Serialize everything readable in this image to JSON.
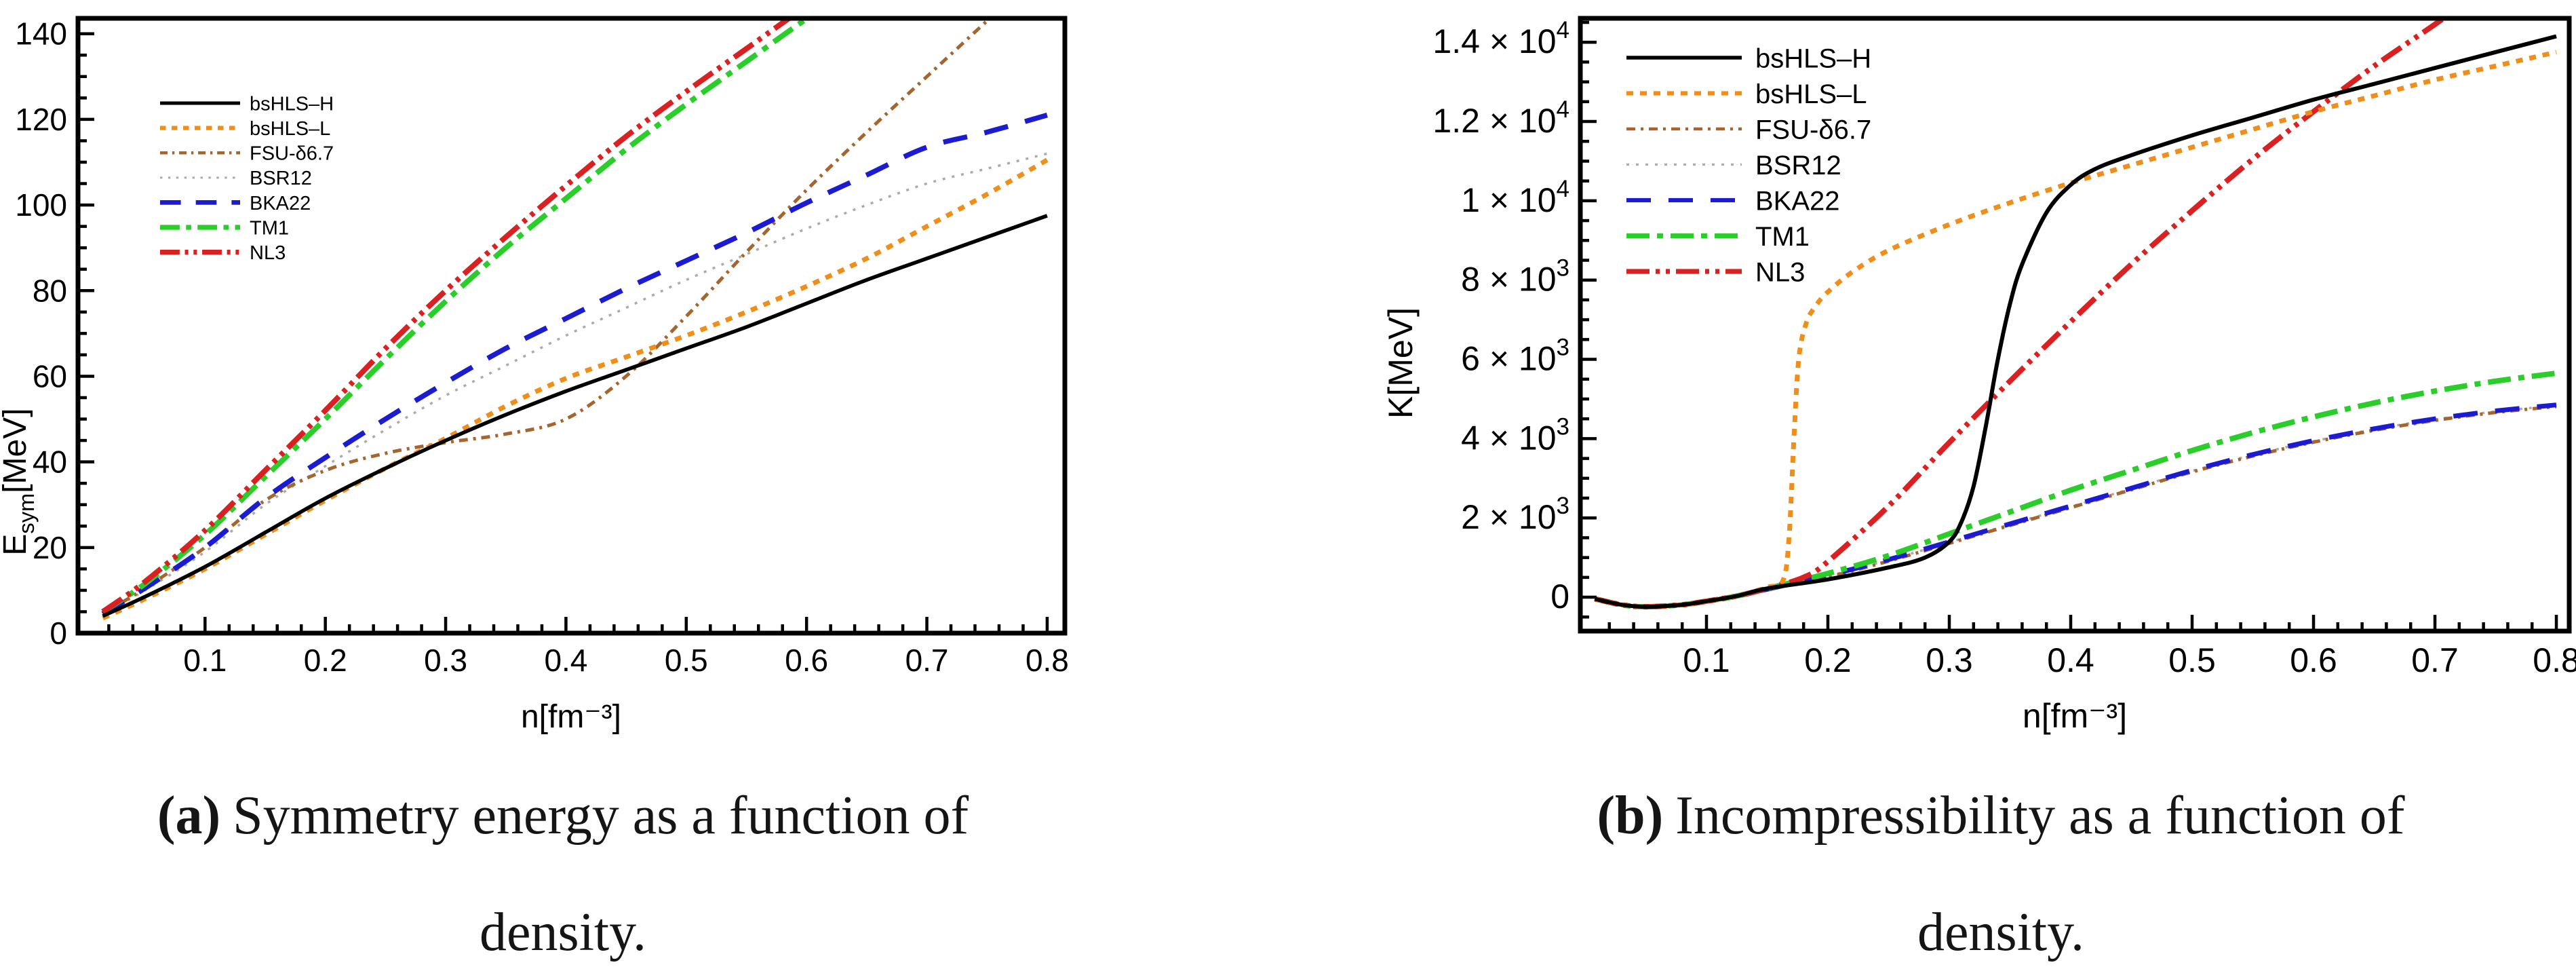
{
  "figure": {
    "captions": {
      "a": {
        "label": "(a)",
        "line1_rest": "Symmetry energy as a function of",
        "line2": "density."
      },
      "b": {
        "label": "(b)",
        "line1_rest": "Incompressibility as a function of",
        "line2": "density."
      }
    }
  },
  "chart_data": [
    {
      "id": "a",
      "type": "line",
      "title": "",
      "xlabel": "n[fm⁻³]",
      "ylabel_parts": [
        {
          "t": "E"
        },
        {
          "t": "sym",
          "sub": true
        },
        {
          "t": "[MeV]"
        }
      ],
      "xlim": [
        -0.0056,
        0.8147
      ],
      "ylim": [
        0,
        143.6
      ],
      "grid": false,
      "legend_position": "upper-left-inside",
      "x_major_ticks": [
        {
          "v": 0.1,
          "m": "0.1"
        },
        {
          "v": 0.2,
          "m": "0.2"
        },
        {
          "v": 0.3,
          "m": "0.3"
        },
        {
          "v": 0.4,
          "m": "0.4"
        },
        {
          "v": 0.5,
          "m": "0.5"
        },
        {
          "v": 0.6,
          "m": "0.6"
        },
        {
          "v": 0.7,
          "m": "0.7"
        },
        {
          "v": 0.8,
          "m": "0.8"
        }
      ],
      "x_minor_step": 0.02,
      "x_minor_start": 0.02,
      "y_major_ticks": [
        {
          "v": 0,
          "m": "0"
        },
        {
          "v": 20,
          "m": "20"
        },
        {
          "v": 40,
          "m": "40"
        },
        {
          "v": 60,
          "m": "60"
        },
        {
          "v": 80,
          "m": "80"
        },
        {
          "v": 100,
          "m": "100"
        },
        {
          "v": 120,
          "m": "120"
        },
        {
          "v": 140,
          "m": "140"
        }
      ],
      "y_minor_step": 5,
      "y_minor_start": 5,
      "x": [
        0.015,
        0.05,
        0.1,
        0.15,
        0.2,
        0.25,
        0.3,
        0.35,
        0.4,
        0.45,
        0.5,
        0.55,
        0.6,
        0.65,
        0.7,
        0.75,
        0.8
      ],
      "series": [
        {
          "name": "bsHLS-H",
          "label": "bsHLS–H",
          "color": "#000000",
          "width": 5.5,
          "dash": "",
          "z": 7,
          "y": [
            4,
            8.5,
            15.5,
            23.5,
            31.5,
            38.5,
            45,
            51,
            56.5,
            61.5,
            66.5,
            71.5,
            77,
            82.5,
            87.5,
            92.5,
            97.5
          ]
        },
        {
          "name": "bsHLS-L",
          "label": "bsHLS–L",
          "color": "#EF8E1A",
          "width": 7,
          "dash": "10 10",
          "z": 6,
          "y": [
            3.5,
            8,
            15,
            23,
            31,
            38.5,
            45.5,
            53,
            59.5,
            64.5,
            69.5,
            75,
            81,
            87.5,
            95,
            102.5,
            110.5
          ]
        },
        {
          "name": "FSU-d6.7",
          "label": "FSU-δ6.7",
          "color": "#A4662E",
          "width": 5,
          "dash": "13 8 4 8",
          "z": 2,
          "y": [
            4.5,
            10.5,
            20,
            31,
            38,
            42,
            44.5,
            46.5,
            50,
            60,
            74,
            89,
            103.5,
            117,
            130,
            143,
            156
          ]
        },
        {
          "name": "BSR12",
          "label": "BSR12",
          "color": "#ABABAB",
          "width": 3.5,
          "dash": "4 10",
          "z": 1,
          "y": [
            4.5,
            10,
            19,
            30,
            39,
            47.5,
            55.5,
            62.5,
            69.5,
            76,
            82.5,
            88.5,
            94.5,
            100,
            105,
            108.5,
            112
          ]
        },
        {
          "name": "BKA22",
          "label": "BKA22",
          "color": "#1B1BD2",
          "width": 7.5,
          "dash": "36 26",
          "z": 3,
          "y": [
            4.5,
            10.5,
            20,
            31.5,
            41,
            50,
            58.5,
            66.5,
            73.5,
            80.5,
            87,
            93.5,
            100.5,
            107,
            113.5,
            117,
            121
          ]
        },
        {
          "name": "TM1",
          "label": "TM1",
          "color": "#2BCD2B",
          "width": 8,
          "dash": "34 11 9 11",
          "z": 4,
          "y": [
            5,
            11.5,
            23,
            36.5,
            50,
            64,
            77.5,
            90,
            101.5,
            113,
            123.5,
            133.5,
            143.5,
            153,
            162,
            171,
            180
          ]
        },
        {
          "name": "NL3",
          "label": "NL3",
          "color": "#D92121",
          "width": 8,
          "dash": "34 9 6 9 6 9",
          "z": 5,
          "y": [
            5,
            12,
            24,
            38,
            52,
            66.5,
            80,
            92.5,
            104.5,
            116,
            126.5,
            136.5,
            146.5,
            156,
            165,
            174,
            183
          ]
        }
      ]
    },
    {
      "id": "b",
      "type": "line",
      "title": "",
      "xlabel": "n[fm⁻³]",
      "ylabel_parts": [
        {
          "t": "K[MeV]"
        }
      ],
      "xlim": [
        -0.0039,
        0.8106
      ],
      "ylim": [
        -855,
        14603
      ],
      "grid": false,
      "legend_position": "upper-left-inside",
      "x_major_ticks": [
        {
          "v": 0.1,
          "m": "0.1"
        },
        {
          "v": 0.2,
          "m": "0.2"
        },
        {
          "v": 0.3,
          "m": "0.3"
        },
        {
          "v": 0.4,
          "m": "0.4"
        },
        {
          "v": 0.5,
          "m": "0.5"
        },
        {
          "v": 0.6,
          "m": "0.6"
        },
        {
          "v": 0.7,
          "m": "0.7"
        },
        {
          "v": 0.8,
          "m": "0.8"
        }
      ],
      "x_minor_step": 0.02,
      "x_minor_start": 0.02,
      "y_major_ticks": [
        {
          "v": 0,
          "m": "0"
        },
        {
          "v": 2000,
          "m": "2 × 10",
          "e": "3"
        },
        {
          "v": 4000,
          "m": "4 × 10",
          "e": "3"
        },
        {
          "v": 6000,
          "m": "6 × 10",
          "e": "3"
        },
        {
          "v": 8000,
          "m": "8 × 10",
          "e": "3"
        },
        {
          "v": 10000,
          "m": "1 × 10",
          "e": "4"
        },
        {
          "v": 12000,
          "m": "1.2 × 10",
          "e": "4"
        },
        {
          "v": 14000,
          "m": "1.4 × 10",
          "e": "4"
        }
      ],
      "y_minor_step": 500,
      "y_minor_start": -500,
      "series": [
        {
          "name": "bsHLS-H",
          "label": "bsHLS–H",
          "color": "#000000",
          "width": 6,
          "dash": "",
          "z": 7,
          "x": [
            0.008,
            0.03,
            0.05,
            0.08,
            0.1,
            0.125,
            0.15,
            0.2,
            0.25,
            0.28,
            0.3,
            0.31,
            0.32,
            0.33,
            0.34,
            0.35,
            0.36,
            0.38,
            0.4,
            0.42,
            0.45,
            0.5,
            0.55,
            0.6,
            0.65,
            0.7,
            0.75,
            0.8
          ],
          "y": [
            -40,
            -190,
            -240,
            -190,
            -100,
            30,
            220,
            450,
            750,
            1000,
            1400,
            1900,
            2800,
            4300,
            6000,
            7400,
            8400,
            9700,
            10400,
            10800,
            11150,
            11650,
            12100,
            12550,
            12950,
            13350,
            13750,
            14150
          ]
        },
        {
          "name": "bsHLS-L",
          "label": "bsHLS–L",
          "color": "#EF8E1A",
          "width": 7,
          "dash": "10 10",
          "z": 6,
          "x": [
            0.008,
            0.03,
            0.05,
            0.08,
            0.1,
            0.125,
            0.15,
            0.163,
            0.168,
            0.172,
            0.176,
            0.182,
            0.19,
            0.2,
            0.22,
            0.25,
            0.3,
            0.35,
            0.4,
            0.45,
            0.5,
            0.55,
            0.6,
            0.65,
            0.7,
            0.75,
            0.8
          ],
          "y": [
            -40,
            -190,
            -240,
            -190,
            -100,
            30,
            250,
            420,
            1500,
            4000,
            6000,
            6900,
            7350,
            7700,
            8200,
            8750,
            9400,
            9950,
            10450,
            10900,
            11350,
            11800,
            12250,
            12650,
            13050,
            13400,
            13750
          ]
        },
        {
          "name": "FSU-d6.7",
          "label": "FSU-δ6.7",
          "color": "#A4662E",
          "width": 5,
          "dash": "13 8 4 8",
          "z": 2,
          "x": [
            0.008,
            0.03,
            0.05,
            0.08,
            0.1,
            0.125,
            0.15,
            0.2,
            0.25,
            0.3,
            0.35,
            0.4,
            0.45,
            0.5,
            0.55,
            0.6,
            0.65,
            0.7,
            0.75,
            0.8
          ],
          "y": [
            -40,
            -190,
            -240,
            -190,
            -100,
            30,
            200,
            510,
            910,
            1360,
            1810,
            2260,
            2710,
            3160,
            3560,
            3910,
            4210,
            4460,
            4660,
            4810
          ]
        },
        {
          "name": "BSR12",
          "label": "BSR12",
          "color": "#ABABAB",
          "width": 3.5,
          "dash": "4 10",
          "z": 1,
          "x": [
            0.008,
            0.03,
            0.05,
            0.08,
            0.1,
            0.125,
            0.15,
            0.2,
            0.25,
            0.3,
            0.35,
            0.4,
            0.45,
            0.5,
            0.55,
            0.6,
            0.65,
            0.7,
            0.75,
            0.8
          ],
          "y": [
            -40,
            -190,
            -240,
            -190,
            -100,
            30,
            200,
            535,
            935,
            1385,
            1835,
            2285,
            2735,
            3185,
            3585,
            3935,
            4235,
            4485,
            4685,
            4835
          ]
        },
        {
          "name": "BKA22",
          "label": "BKA22",
          "color": "#1B1BD2",
          "width": 7,
          "dash": "36 26",
          "z": 3,
          "x": [
            0.008,
            0.03,
            0.05,
            0.08,
            0.1,
            0.125,
            0.15,
            0.2,
            0.25,
            0.3,
            0.35,
            0.4,
            0.45,
            0.5,
            0.55,
            0.6,
            0.65,
            0.7,
            0.75,
            0.8
          ],
          "y": [
            -40,
            -190,
            -240,
            -190,
            -100,
            30,
            200,
            550,
            950,
            1400,
            1850,
            2300,
            2750,
            3200,
            3600,
            3950,
            4250,
            4500,
            4700,
            4850
          ]
        },
        {
          "name": "TM1",
          "label": "TM1",
          "color": "#2BCD2B",
          "width": 8,
          "dash": "34 11 9 11",
          "z": 4,
          "x": [
            0.008,
            0.03,
            0.05,
            0.08,
            0.1,
            0.125,
            0.15,
            0.2,
            0.25,
            0.3,
            0.35,
            0.4,
            0.45,
            0.5,
            0.55,
            0.6,
            0.65,
            0.7,
            0.75,
            0.8
          ],
          "y": [
            -40,
            -190,
            -240,
            -190,
            -100,
            30,
            220,
            600,
            1050,
            1600,
            2150,
            2700,
            3200,
            3700,
            4150,
            4550,
            4900,
            5200,
            5450,
            5650
          ]
        },
        {
          "name": "NL3",
          "label": "NL3",
          "color": "#D92121",
          "width": 8,
          "dash": "34 9 6 9 6 9",
          "z": 5,
          "x": [
            0.008,
            0.03,
            0.05,
            0.08,
            0.1,
            0.125,
            0.15,
            0.18,
            0.2,
            0.25,
            0.3,
            0.35,
            0.4,
            0.45,
            0.5,
            0.55,
            0.6,
            0.65,
            0.7,
            0.73
          ],
          "y": [
            -40,
            -190,
            -240,
            -190,
            -100,
            30,
            220,
            500,
            900,
            2300,
            3900,
            5450,
            6950,
            8400,
            9750,
            11050,
            12250,
            13400,
            14450,
            15100
          ]
        }
      ]
    }
  ]
}
